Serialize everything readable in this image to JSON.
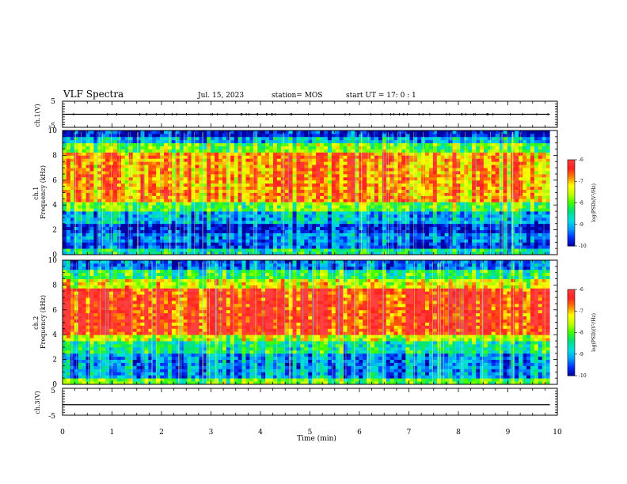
{
  "header": {
    "title": "VLF Spectra",
    "date": "Jul. 15, 2023",
    "station": "station= MOS",
    "start": "start UT = 17: 0 : 1"
  },
  "colors": {
    "scale": [
      "#0000a0",
      "#0030ff",
      "#00a0ff",
      "#00e0e0",
      "#00e080",
      "#40ff00",
      "#c0ff00",
      "#ffff00",
      "#ff8000",
      "#ff2020",
      "#ff4040"
    ],
    "trace": "#000000"
  },
  "chart_data": [
    {
      "type": "line",
      "panel": "ch1-voltage",
      "ylabel": "ch.1(V)",
      "ylim": [
        -5,
        5
      ],
      "yticks": [
        "5",
        "-5"
      ],
      "series": [
        {
          "x": [
            0,
            9.85
          ],
          "values": [
            0,
            0
          ]
        }
      ]
    },
    {
      "type": "heatmap",
      "panel": "ch1-spectrogram",
      "ylabel": "ch.1\nFrequency (kHz)",
      "ylim": [
        0,
        10
      ],
      "yticks": [
        "0",
        "2",
        "4",
        "6",
        "8",
        "10"
      ],
      "x_range_min": [
        0,
        9.85
      ],
      "bands_kHz": [
        {
          "from": 0,
          "to": 0.6,
          "level": -8.5
        },
        {
          "from": 0.6,
          "to": 1.0,
          "level": -9.6
        },
        {
          "from": 1.0,
          "to": 1.8,
          "level": -9.3
        },
        {
          "from": 1.8,
          "to": 2.4,
          "level": -9.8
        },
        {
          "from": 2.4,
          "to": 3.4,
          "level": -9.0
        },
        {
          "from": 3.4,
          "to": 4.2,
          "level": -8.0
        },
        {
          "from": 4.2,
          "to": 8.3,
          "level": -6.9
        },
        {
          "from": 8.3,
          "to": 9.0,
          "level": -7.9
        },
        {
          "from": 9.0,
          "to": 9.6,
          "level": -9.0
        },
        {
          "from": 9.6,
          "to": 10,
          "level": -9.9
        }
      ],
      "colorbar": {
        "label": "log(PSD)(V²/Hz)",
        "ticks": [
          "-6",
          "-7",
          "-8",
          "-9",
          "-10"
        ],
        "range": [
          -10,
          -6
        ]
      }
    },
    {
      "type": "heatmap",
      "panel": "ch2-spectrogram",
      "ylabel": "ch.2\nFrequency (kHz)",
      "ylim": [
        0,
        10
      ],
      "yticks": [
        "0",
        "2",
        "4",
        "6",
        "8",
        "10"
      ],
      "x_range_min": [
        0,
        9.85
      ],
      "bands_kHz": [
        {
          "from": 0,
          "to": 0.6,
          "level": -8.0
        },
        {
          "from": 0.6,
          "to": 2.6,
          "level": -9.2
        },
        {
          "from": 2.6,
          "to": 3.5,
          "level": -8.5
        },
        {
          "from": 3.5,
          "to": 4.0,
          "level": -7.6
        },
        {
          "from": 4.0,
          "to": 7.8,
          "level": -6.4
        },
        {
          "from": 7.8,
          "to": 8.5,
          "level": -7.4
        },
        {
          "from": 8.5,
          "to": 9.3,
          "level": -8.3
        },
        {
          "from": 9.3,
          "to": 10,
          "level": -9.4
        }
      ],
      "colorbar": {
        "label": "log(PSD)(V²/Hz)",
        "ticks": [
          "-6",
          "-7",
          "-8",
          "-9",
          "-10"
        ],
        "range": [
          -10,
          -6
        ]
      }
    },
    {
      "type": "line",
      "panel": "ch3-voltage",
      "ylabel": "ch.3(V)",
      "ylim": [
        -5,
        5
      ],
      "yticks": [
        "5",
        "-5"
      ],
      "series": [
        {
          "x": [
            0,
            9.85
          ],
          "values": [
            -1.1,
            -1.1
          ]
        }
      ]
    }
  ],
  "xaxis": {
    "label": "Time (min)",
    "xlim": [
      0,
      10
    ],
    "ticks": [
      "0",
      "1",
      "2",
      "3",
      "4",
      "5",
      "6",
      "7",
      "8",
      "9",
      "10"
    ]
  }
}
